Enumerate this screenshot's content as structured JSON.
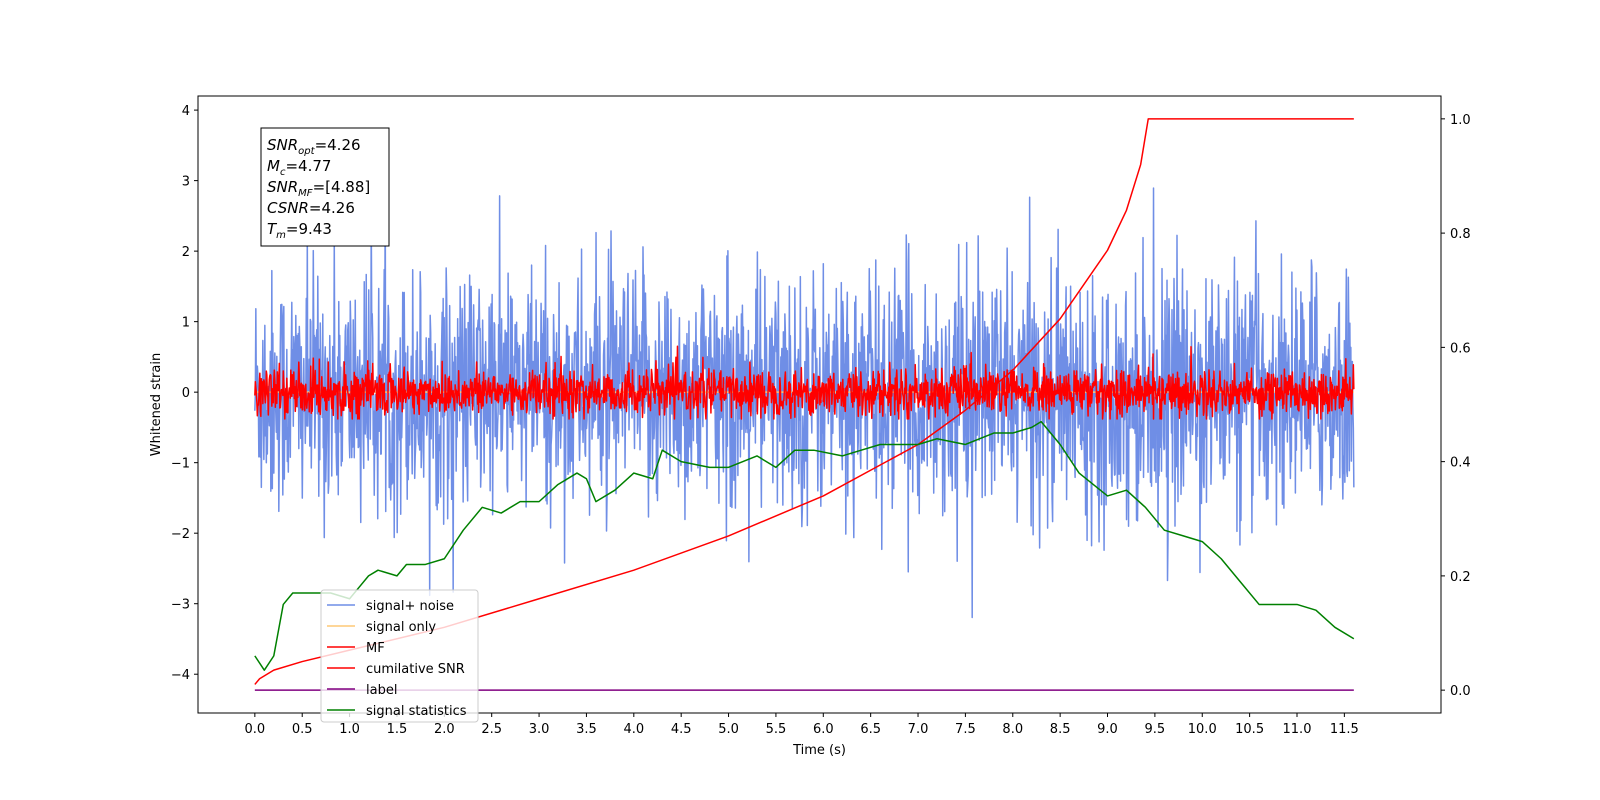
{
  "chart_data": {
    "type": "line",
    "xlabel": "Time (s)",
    "ylabel": "Whitened strain",
    "xlim": [
      -0.6,
      12.52
    ],
    "ylim": [
      -4.55,
      4.2
    ],
    "y2lim": [
      -0.04,
      1.04
    ],
    "xticks": [
      "0.0",
      "0.5",
      "1.0",
      "1.5",
      "2.0",
      "2.5",
      "3.0",
      "3.5",
      "4.0",
      "4.5",
      "5.0",
      "5.5",
      "6.0",
      "6.5",
      "7.0",
      "7.5",
      "8.0",
      "8.5",
      "9.0",
      "9.5",
      "10.0",
      "10.5",
      "11.0",
      "11.5"
    ],
    "yticks": [
      "−4",
      "−3",
      "−2",
      "−1",
      "0",
      "1",
      "2",
      "3",
      "4"
    ],
    "y2ticks": [
      "0.0",
      "0.2",
      "0.4",
      "0.6",
      "0.8",
      "1.0"
    ],
    "grid": false,
    "legend_position": "lower-left",
    "annotation": {
      "lines": [
        {
          "base": "SNR",
          "sub": "opt",
          "value": "=4.26"
        },
        {
          "base": "M",
          "sub": "c",
          "value": "=4.77"
        },
        {
          "base": "SNR",
          "sub": "MF",
          "value": "=[4.88]"
        },
        {
          "base": "CSNR",
          "sub": "",
          "value": "=4.26"
        },
        {
          "base": "T",
          "sub": "m",
          "value": "=9.43"
        }
      ]
    },
    "series": [
      {
        "name": "signal+ noise",
        "color": "#6f8ee6",
        "axis": "left",
        "kind": "noise",
        "amplitude": 0.85
      },
      {
        "name": "signal only",
        "color": "#fdc876",
        "axis": "left",
        "kind": "flat",
        "value": 0.0
      },
      {
        "name": "MF",
        "color": "#ff0000",
        "axis": "left",
        "kind": "noise",
        "amplitude": 0.17
      },
      {
        "name": "cumilative SNR",
        "color": "#ff0000",
        "axis": "right",
        "x": [
          0.0,
          0.05,
          0.2,
          0.5,
          1.0,
          2.0,
          3.0,
          4.0,
          5.0,
          6.0,
          7.0,
          7.5,
          8.0,
          8.5,
          9.0,
          9.2,
          9.35,
          9.43,
          11.6
        ],
        "y": [
          0.01,
          0.02,
          0.035,
          0.05,
          0.07,
          0.11,
          0.16,
          0.21,
          0.27,
          0.34,
          0.43,
          0.49,
          0.56,
          0.65,
          0.77,
          0.84,
          0.92,
          1.0,
          1.0
        ]
      },
      {
        "name": "label",
        "color": "#800080",
        "axis": "right",
        "x": [
          0.0,
          11.6
        ],
        "y": [
          0.0,
          0.0
        ]
      },
      {
        "name": "signal statistics",
        "color": "#008000",
        "axis": "right",
        "x": [
          0.0,
          0.1,
          0.2,
          0.3,
          0.4,
          0.6,
          0.8,
          1.0,
          1.1,
          1.2,
          1.3,
          1.5,
          1.6,
          1.8,
          2.0,
          2.2,
          2.4,
          2.6,
          2.8,
          3.0,
          3.2,
          3.4,
          3.5,
          3.6,
          3.8,
          4.0,
          4.2,
          4.3,
          4.5,
          4.8,
          5.0,
          5.3,
          5.5,
          5.7,
          5.9,
          6.2,
          6.4,
          6.6,
          6.8,
          7.0,
          7.2,
          7.5,
          7.8,
          8.0,
          8.2,
          8.3,
          8.5,
          8.7,
          9.0,
          9.2,
          9.4,
          9.6,
          9.8,
          10.0,
          10.2,
          10.4,
          10.6,
          10.8,
          11.0,
          11.2,
          11.4,
          11.6
        ],
        "y": [
          0.06,
          0.035,
          0.06,
          0.15,
          0.17,
          0.17,
          0.17,
          0.16,
          0.18,
          0.2,
          0.21,
          0.2,
          0.22,
          0.22,
          0.23,
          0.28,
          0.32,
          0.31,
          0.33,
          0.33,
          0.36,
          0.38,
          0.37,
          0.33,
          0.35,
          0.38,
          0.37,
          0.42,
          0.4,
          0.39,
          0.39,
          0.41,
          0.39,
          0.42,
          0.42,
          0.41,
          0.42,
          0.43,
          0.43,
          0.43,
          0.44,
          0.43,
          0.45,
          0.45,
          0.46,
          0.47,
          0.43,
          0.38,
          0.34,
          0.35,
          0.32,
          0.28,
          0.27,
          0.26,
          0.23,
          0.19,
          0.15,
          0.15,
          0.15,
          0.14,
          0.11,
          0.09
        ]
      }
    ]
  }
}
